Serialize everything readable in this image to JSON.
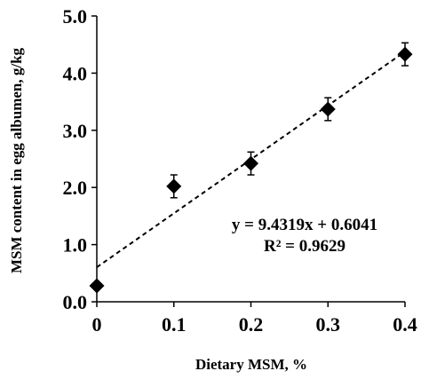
{
  "chart_data": {
    "type": "scatter",
    "title": "",
    "xlabel": "Dietary MSM, %",
    "ylabel": "MSM content in egg albumen, g/kg",
    "xlim": [
      0,
      0.4
    ],
    "ylim": [
      0,
      5
    ],
    "x_ticks": [
      0,
      0.1,
      0.2,
      0.3,
      0.4
    ],
    "x_tick_labels": [
      "0",
      "0.1",
      "0.2",
      "0.3",
      "0.4"
    ],
    "y_ticks": [
      0,
      1,
      2,
      3,
      4,
      5
    ],
    "y_tick_labels": [
      "0.0",
      "1.0",
      "2.0",
      "3.0",
      "4.0",
      "5.0"
    ],
    "grid": false,
    "legend": "none",
    "marker": "diamond",
    "series": [
      {
        "x": [
          0,
          0.1,
          0.2,
          0.3,
          0.4
        ],
        "y": [
          0.28,
          2.02,
          2.42,
          3.37,
          4.33
        ],
        "error": [
          0.05,
          0.2,
          0.2,
          0.2,
          0.2
        ]
      }
    ],
    "trendline": {
      "style": "dashed",
      "slope": 9.4319,
      "intercept": 0.6041,
      "x_range": [
        0,
        0.4
      ]
    },
    "annotations": [
      "y = 9.4319x + 0.6041",
      "R² = 0.9629"
    ],
    "colors": {
      "marker": "#000000",
      "line": "#000000",
      "background": "#ffffff"
    }
  }
}
